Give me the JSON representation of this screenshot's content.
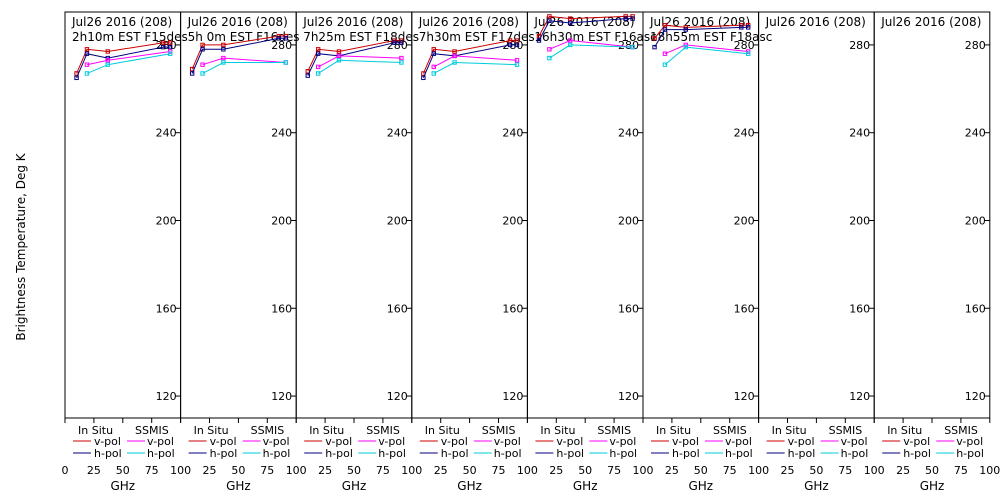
{
  "figure": {
    "ylabel": "Brightness Temperature, Deg K",
    "xlabel": "GHz",
    "colors": {
      "insitu_v": "#cc0000",
      "insitu_h": "#000080",
      "ssmis_v": "#ff00ff",
      "ssmis_h": "#00ccdd"
    },
    "legend": {
      "insitu_title": "In Situ",
      "ssmis_title": "SSMIS",
      "v_label": "v-pol",
      "h_label": "h-pol"
    }
  },
  "chart_data": [
    {
      "type": "line",
      "title": "Jul26 2016 (208)",
      "subtitle": "2h10m EST F15des",
      "xlim": [
        0,
        100
      ],
      "ylim": [
        110,
        295
      ],
      "xticks": [
        0,
        25,
        50,
        75,
        100
      ],
      "yticks": [
        120,
        160,
        200,
        240,
        280
      ],
      "series": [
        {
          "group": "In Situ",
          "name": "v-pol",
          "colorKey": "insitu_v",
          "x": [
            10,
            19,
            37,
            85,
            91
          ],
          "y": [
            267,
            278,
            277,
            281,
            281
          ]
        },
        {
          "group": "In Situ",
          "name": "h-pol",
          "colorKey": "insitu_h",
          "x": [
            10,
            19,
            37,
            85,
            91
          ],
          "y": [
            265,
            276,
            274,
            279,
            279
          ]
        },
        {
          "group": "SSMIS",
          "name": "v-pol",
          "colorKey": "ssmis_v",
          "x": [
            19,
            37,
            91
          ],
          "y": [
            271,
            273,
            277
          ]
        },
        {
          "group": "SSMIS",
          "name": "h-pol",
          "colorKey": "ssmis_h",
          "x": [
            19,
            37,
            91
          ],
          "y": [
            267,
            271,
            276
          ]
        }
      ]
    },
    {
      "type": "line",
      "title": "Jul26 2016 (208)",
      "subtitle": "5h 0m  EST F16des",
      "xlim": [
        0,
        100
      ],
      "ylim": [
        110,
        295
      ],
      "xticks": [
        0,
        25,
        50,
        75,
        100
      ],
      "yticks": [
        120,
        160,
        200,
        240,
        280
      ],
      "series": [
        {
          "group": "In Situ",
          "name": "v-pol",
          "colorKey": "insitu_v",
          "x": [
            10,
            19,
            37,
            85,
            91
          ],
          "y": [
            269,
            280,
            280,
            284,
            284
          ]
        },
        {
          "group": "In Situ",
          "name": "h-pol",
          "colorKey": "insitu_h",
          "x": [
            10,
            19,
            37,
            85,
            91
          ],
          "y": [
            267,
            278,
            278,
            283,
            283
          ]
        },
        {
          "group": "SSMIS",
          "name": "v-pol",
          "colorKey": "ssmis_v",
          "x": [
            19,
            37,
            91
          ],
          "y": [
            271,
            274,
            272
          ]
        },
        {
          "group": "SSMIS",
          "name": "h-pol",
          "colorKey": "ssmis_h",
          "x": [
            19,
            37,
            91
          ],
          "y": [
            267,
            272,
            272
          ]
        }
      ]
    },
    {
      "type": "line",
      "title": "Jul26 2016 (208)",
      "subtitle": "7h25m EST F18des",
      "xlim": [
        0,
        100
      ],
      "ylim": [
        110,
        295
      ],
      "xticks": [
        0,
        25,
        50,
        75,
        100
      ],
      "yticks": [
        120,
        160,
        200,
        240,
        280
      ],
      "series": [
        {
          "group": "In Situ",
          "name": "v-pol",
          "colorKey": "insitu_v",
          "x": [
            10,
            19,
            37,
            85,
            91
          ],
          "y": [
            268,
            278,
            277,
            282,
            282
          ]
        },
        {
          "group": "In Situ",
          "name": "h-pol",
          "colorKey": "insitu_h",
          "x": [
            10,
            19,
            37,
            85,
            91
          ],
          "y": [
            266,
            276,
            275,
            281,
            281
          ]
        },
        {
          "group": "SSMIS",
          "name": "v-pol",
          "colorKey": "ssmis_v",
          "x": [
            19,
            37,
            91
          ],
          "y": [
            270,
            275,
            274
          ]
        },
        {
          "group": "SSMIS",
          "name": "h-pol",
          "colorKey": "ssmis_h",
          "x": [
            19,
            37,
            91
          ],
          "y": [
            267,
            273,
            272
          ]
        }
      ]
    },
    {
      "type": "line",
      "title": "Jul26 2016 (208)",
      "subtitle": "7h30m EST F17des",
      "xlim": [
        0,
        100
      ],
      "ylim": [
        110,
        295
      ],
      "xticks": [
        0,
        25,
        50,
        75,
        100
      ],
      "yticks": [
        120,
        160,
        200,
        240,
        280
      ],
      "series": [
        {
          "group": "In Situ",
          "name": "v-pol",
          "colorKey": "insitu_v",
          "x": [
            10,
            19,
            37,
            85,
            91
          ],
          "y": [
            267,
            278,
            277,
            282,
            282
          ]
        },
        {
          "group": "In Situ",
          "name": "h-pol",
          "colorKey": "insitu_h",
          "x": [
            10,
            19,
            37,
            85,
            91
          ],
          "y": [
            265,
            276,
            275,
            280,
            280
          ]
        },
        {
          "group": "SSMIS",
          "name": "v-pol",
          "colorKey": "ssmis_v",
          "x": [
            19,
            37,
            91
          ],
          "y": [
            270,
            275,
            273
          ]
        },
        {
          "group": "SSMIS",
          "name": "h-pol",
          "colorKey": "ssmis_h",
          "x": [
            19,
            37,
            91
          ],
          "y": [
            267,
            272,
            271
          ]
        }
      ]
    },
    {
      "type": "line",
      "title": "Jul26 2016 (208)",
      "subtitle": "16h30m EST F16asc",
      "xlim": [
        0,
        100
      ],
      "ylim": [
        110,
        295
      ],
      "xticks": [
        0,
        25,
        50,
        75,
        100
      ],
      "yticks": [
        120,
        160,
        200,
        240,
        280
      ],
      "series": [
        {
          "group": "In Situ",
          "name": "v-pol",
          "colorKey": "insitu_v",
          "x": [
            10,
            19,
            37,
            85,
            91
          ],
          "y": [
            284,
            293,
            292,
            293,
            293
          ]
        },
        {
          "group": "In Situ",
          "name": "h-pol",
          "colorKey": "insitu_h",
          "x": [
            10,
            19,
            37,
            85,
            91
          ],
          "y": [
            282,
            291,
            290,
            292,
            292
          ]
        },
        {
          "group": "SSMIS",
          "name": "v-pol",
          "colorKey": "ssmis_v",
          "x": [
            19,
            37,
            91
          ],
          "y": [
            278,
            282,
            279
          ]
        },
        {
          "group": "SSMIS",
          "name": "h-pol",
          "colorKey": "ssmis_h",
          "x": [
            19,
            37,
            91
          ],
          "y": [
            274,
            280,
            279
          ]
        }
      ]
    },
    {
      "type": "line",
      "title": "Jul26 2016 (208)",
      "subtitle": "18h55m EST F18asc",
      "xlim": [
        0,
        100
      ],
      "ylim": [
        110,
        295
      ],
      "xticks": [
        0,
        25,
        50,
        75,
        100
      ],
      "yticks": [
        120,
        160,
        200,
        240,
        280
      ],
      "series": [
        {
          "group": "In Situ",
          "name": "v-pol",
          "colorKey": "insitu_v",
          "x": [
            10,
            19,
            37,
            85,
            91
          ],
          "y": [
            283,
            289,
            288,
            289,
            289
          ]
        },
        {
          "group": "In Situ",
          "name": "h-pol",
          "colorKey": "insitu_h",
          "x": [
            10,
            19,
            37,
            85,
            91
          ],
          "y": [
            279,
            287,
            287,
            288,
            288
          ]
        },
        {
          "group": "SSMIS",
          "name": "v-pol",
          "colorKey": "ssmis_v",
          "x": [
            19,
            37,
            91
          ],
          "y": [
            276,
            280,
            277
          ]
        },
        {
          "group": "SSMIS",
          "name": "h-pol",
          "colorKey": "ssmis_h",
          "x": [
            19,
            37,
            91
          ],
          "y": [
            271,
            279,
            276
          ]
        }
      ]
    },
    {
      "type": "line",
      "title": "Jul26 2016 (208)",
      "subtitle": "",
      "xlim": [
        0,
        100
      ],
      "ylim": [
        110,
        295
      ],
      "xticks": [
        0,
        25,
        50,
        75,
        100
      ],
      "yticks": [
        120,
        160,
        200,
        240,
        280
      ],
      "series": []
    },
    {
      "type": "line",
      "title": "Jul26 2016 (208)",
      "subtitle": "",
      "xlim": [
        0,
        100
      ],
      "ylim": [
        110,
        295
      ],
      "xticks": [
        0,
        25,
        50,
        75,
        100
      ],
      "yticks": [
        120,
        160,
        200,
        240,
        280
      ],
      "series": []
    }
  ]
}
